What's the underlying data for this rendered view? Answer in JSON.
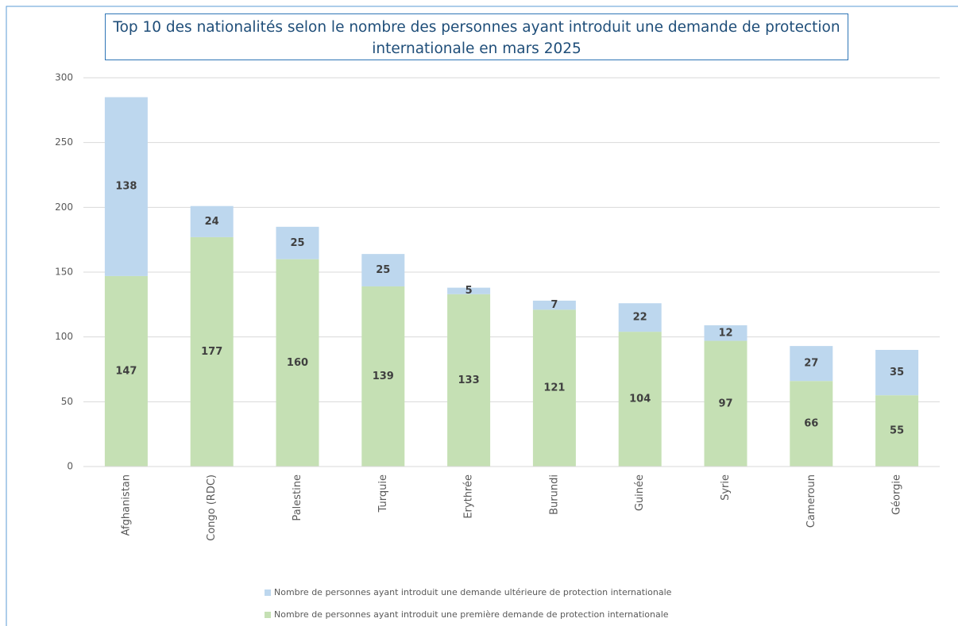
{
  "chart_data": {
    "type": "stacked_bar",
    "title": "Top 10 des nationalités selon le nombre des personnes ayant introduit une demande de protection internationale en mars 2025",
    "categories": [
      "Afghanistan",
      "Congo (RDC)",
      "Palestine",
      "Turquie",
      "Erythrée",
      "Burundi",
      "Guinée",
      "Syrie",
      "Cameroun",
      "Géorgie"
    ],
    "series": [
      {
        "name": "Nombre de personnes ayant introduit une première demande de protection internationale",
        "color": "#c5e0b4",
        "values": [
          147,
          177,
          160,
          139,
          133,
          121,
          104,
          97,
          66,
          55
        ]
      },
      {
        "name": "Nombre de personnes ayant introduit une demande ultérieure de protection internationale",
        "color": "#bdd7ee",
        "values": [
          138,
          24,
          25,
          25,
          5,
          7,
          22,
          12,
          27,
          35
        ]
      }
    ],
    "ylim": [
      0,
      300
    ],
    "yticks": [
      0,
      50,
      100,
      150,
      200,
      250,
      300
    ],
    "grid": true
  }
}
